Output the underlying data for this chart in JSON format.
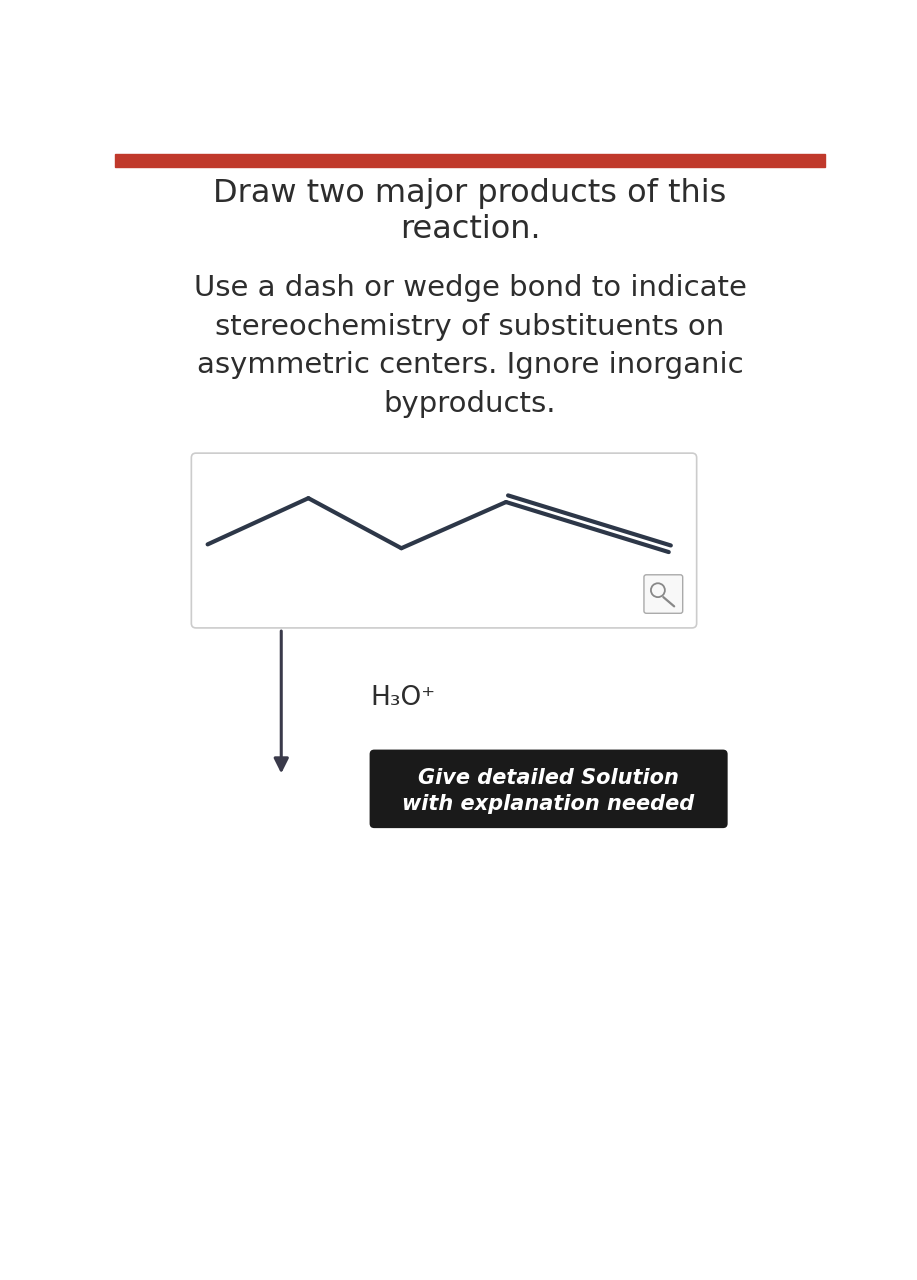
{
  "title_line1": "Draw two major products of this",
  "title_line2": "reaction.",
  "subtitle_lines": [
    "Use a dash or wedge bond to indicate",
    "stereochemistry of substituents on",
    "asymmetric centers. Ignore inorganic",
    "byproducts."
  ],
  "reagent": "H₃O⁺",
  "button_line1": "Give detailed Solution",
  "button_line2": "with explanation needed",
  "background_color": "#ffffff",
  "text_color": "#2d2d2d",
  "header_bar_color": "#c0392b",
  "molecule_line_color": "#2d3748",
  "button_bg_color": "#1a1a1a",
  "button_text_color": "#ffffff",
  "arrow_color": "#3a3a4a",
  "box_border_color": "#cccccc",
  "title_fontsize": 23,
  "subtitle_fontsize": 21,
  "reagent_fontsize": 19,
  "button_fontsize": 15,
  "header_bar_height": 0.18
}
